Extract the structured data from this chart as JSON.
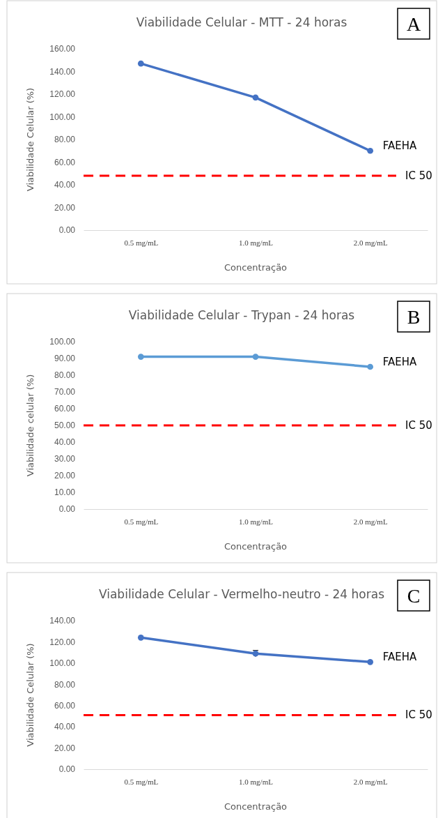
{
  "chart_data": [
    {
      "type": "line",
      "title": "Viabilidade Celular - MTT - 24 horas",
      "xlabel": "Concentração",
      "ylabel": "Viabilidade Celular (%)",
      "categories": [
        "0.5 mg/mL",
        "1.0 mg/mL",
        "2.0 mg/mL"
      ],
      "series": [
        {
          "name": "FAEHA",
          "color": "#4472c4",
          "values": [
            147,
            117,
            70
          ]
        }
      ],
      "ylim": [
        0,
        160
      ],
      "yticks": [
        {
          "value": 0,
          "label": "0.00"
        },
        {
          "value": 20,
          "label": "20.00"
        },
        {
          "value": 40,
          "label": "40.00"
        },
        {
          "value": 60,
          "label": "60.00"
        },
        {
          "value": 80,
          "label": "80.00"
        },
        {
          "value": 100,
          "label": "100.00"
        },
        {
          "value": 120,
          "label": "120.00"
        },
        {
          "value": 140,
          "label": "140.00"
        },
        {
          "value": 160,
          "label": "160.00"
        }
      ],
      "ref_lines": [
        {
          "axis": "y",
          "value": 48,
          "label": "IC 50",
          "color": "#ff0000",
          "line_style": "dashed"
        }
      ],
      "annotations": [
        "A"
      ],
      "marker": "circle",
      "grid": false
    },
    {
      "type": "line",
      "title": "Viabilidade Celular - Trypan - 24 horas",
      "xlabel": "Concentração",
      "ylabel": "Viabilidade celular (%)",
      "categories": [
        "0.5 mg/mL",
        "1.0 mg/mL",
        "2.0 mg/mL"
      ],
      "series": [
        {
          "name": "FAEHA",
          "color": "#5b9bd5",
          "values": [
            91,
            91,
            85
          ]
        }
      ],
      "ylim": [
        0,
        100
      ],
      "yticks": [
        {
          "value": 0,
          "label": "0.00"
        },
        {
          "value": 10,
          "label": "10.00"
        },
        {
          "value": 20,
          "label": "20.00"
        },
        {
          "value": 30,
          "label": "30.00"
        },
        {
          "value": 40,
          "label": "40.00"
        },
        {
          "value": 50,
          "label": "50.00"
        },
        {
          "value": 60,
          "label": "60.00"
        },
        {
          "value": 70,
          "label": "70.00"
        },
        {
          "value": 80,
          "label": "80.00"
        },
        {
          "value": 90,
          "label": "90.00"
        },
        {
          "value": 100,
          "label": "100.00"
        }
      ],
      "ref_lines": [
        {
          "axis": "y",
          "value": 50,
          "label": "IC 50",
          "color": "#ff0000",
          "line_style": "dashed"
        }
      ],
      "annotations": [
        "B"
      ],
      "marker": "circle",
      "grid": false
    },
    {
      "type": "line",
      "title": "Viabilidade Celular - Vermelho-neutro - 24 horas",
      "xlabel": "Concentração",
      "ylabel": "Viabilidade Celular (%)",
      "categories": [
        "0.5 mg/mL",
        "1.0 mg/mL",
        "2.0 mg/mL"
      ],
      "series": [
        {
          "name": "FAEHA",
          "color": "#4472c4",
          "values": [
            124,
            109,
            101
          ],
          "errors": [
            null,
            3,
            null
          ]
        }
      ],
      "ylim": [
        0,
        140
      ],
      "yticks": [
        {
          "value": 0,
          "label": "0.00"
        },
        {
          "value": 20,
          "label": "20.00"
        },
        {
          "value": 40,
          "label": "40.00"
        },
        {
          "value": 60,
          "label": "60.00"
        },
        {
          "value": 80,
          "label": "80.00"
        },
        {
          "value": 100,
          "label": "100.00"
        },
        {
          "value": 120,
          "label": "120.00"
        },
        {
          "value": 140,
          "label": "140.00"
        }
      ],
      "ref_lines": [
        {
          "axis": "y",
          "value": 51,
          "label": "IC 50",
          "color": "#ff0000",
          "line_style": "dashed"
        }
      ],
      "annotations": [
        "C"
      ],
      "marker": "circle",
      "grid": false
    }
  ]
}
